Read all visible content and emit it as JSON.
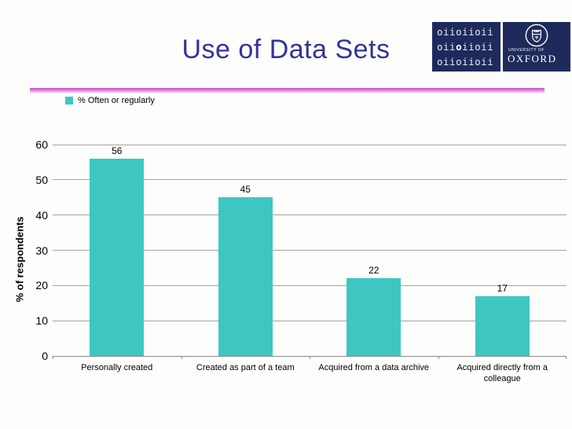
{
  "title": "Use of Data Sets",
  "logo": {
    "oii_rows": [
      {
        "text": "oiioiioii",
        "bold_index": null
      },
      {
        "text": "oiioiioii",
        "bold_index": 3
      },
      {
        "text": "oiioiioii",
        "bold_index": null
      }
    ],
    "university_of": "UNIVERSITY OF",
    "oxford": "OXFORD"
  },
  "chart_data": {
    "type": "bar",
    "title": "Use of Data Sets",
    "legend": "% Often or regularly",
    "categories": [
      "Personally created",
      "Created as part of a team",
      "Acquired from a data archive",
      "Acquired directly from a colleague"
    ],
    "values": [
      56,
      45,
      22,
      17
    ],
    "xlabel": "",
    "ylabel": "% of respondents",
    "ylim": [
      0,
      60
    ],
    "ytick_step": 10,
    "grid": true,
    "legend_position": "top-left",
    "bar_color": "#3EC7C2"
  },
  "colors": {
    "title": "#333399",
    "navy": "#1F2A5C",
    "bar": "#3EC7C2",
    "gridline": "#A3A3A3",
    "axis": "#8C8C8C",
    "divider_top": "#B94FB9",
    "divider_mid": "#E77CE7",
    "divider_bottom": "#F6CDF6"
  }
}
